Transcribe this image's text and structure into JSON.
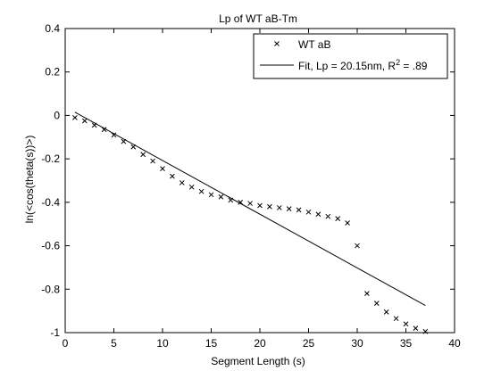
{
  "chart_data": {
    "type": "scatter",
    "title": "Lp of WT aB-Tm",
    "xlabel": "Segment Length (s)",
    "ylabel": "ln(<cos(theta(s))>)",
    "xlim": [
      0,
      40
    ],
    "ylim": [
      -1,
      0.4
    ],
    "xticks": [
      0,
      5,
      10,
      15,
      20,
      25,
      30,
      35,
      40
    ],
    "yticks": [
      -1,
      -0.8,
      -0.6,
      -0.4,
      -0.2,
      0,
      0.2,
      0.4
    ],
    "xtick_labels": [
      "0",
      "5",
      "10",
      "15",
      "20",
      "25",
      "30",
      "35",
      "40"
    ],
    "ytick_labels": [
      "-1",
      "-0.8",
      "-0.6",
      "-0.4",
      "-0.2",
      "0",
      "0.2",
      "0.4"
    ],
    "grid": false,
    "legend_position": "top-right",
    "series": [
      {
        "name": "WT aB",
        "kind": "scatter",
        "marker": "x",
        "color": "#000000",
        "x": [
          1,
          2,
          3,
          4,
          5,
          6,
          7,
          8,
          9,
          10,
          11,
          12,
          13,
          14,
          15,
          16,
          17,
          18,
          19,
          20,
          21,
          22,
          23,
          24,
          25,
          26,
          27,
          28,
          29,
          30,
          31,
          32,
          33,
          34,
          35,
          36,
          37
        ],
        "y": [
          -0.01,
          -0.025,
          -0.045,
          -0.065,
          -0.09,
          -0.12,
          -0.145,
          -0.18,
          -0.21,
          -0.245,
          -0.28,
          -0.31,
          -0.33,
          -0.35,
          -0.365,
          -0.375,
          -0.39,
          -0.4,
          -0.405,
          -0.415,
          -0.42,
          -0.425,
          -0.43,
          -0.435,
          -0.445,
          -0.455,
          -0.465,
          -0.475,
          -0.495,
          -0.6,
          -0.82,
          -0.865,
          -0.905,
          -0.935,
          -0.96,
          -0.98,
          -0.995
        ]
      },
      {
        "name": "Fit, Lp = 20.15nm, R² = .89",
        "kind": "line",
        "color": "#000000",
        "x": [
          1,
          37
        ],
        "y": [
          0.015,
          -0.875
        ]
      }
    ],
    "legend": {
      "entries": [
        {
          "symbol": "×",
          "label": "WT aB"
        },
        {
          "symbol": "line",
          "label_main": "Fit, Lp = 20.15nm, R",
          "label_sup": "2",
          "label_tail": " = .89"
        }
      ]
    }
  }
}
